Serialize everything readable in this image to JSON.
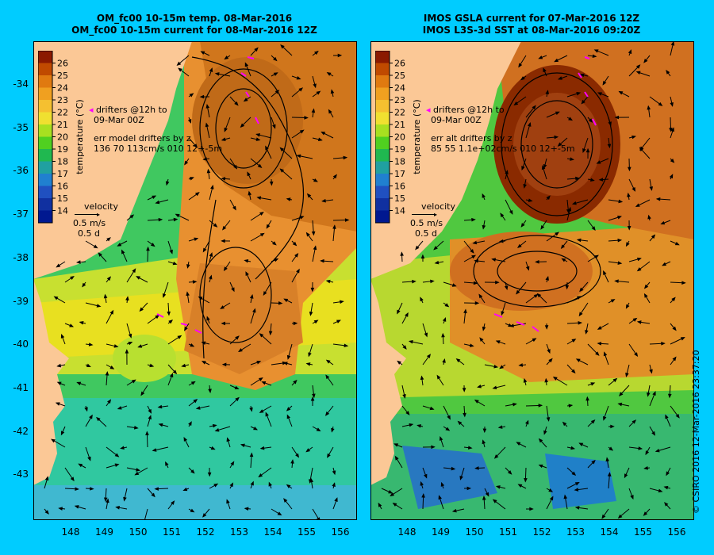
{
  "panels": [
    {
      "title_line1": "OM_fc00 10-15m temp. 08-Mar-2016",
      "title_line2": "OM_fc00 10-15m current for 08-Mar-2016 12Z",
      "drifters_line1": "drifters @12h to",
      "drifters_line2": "09-Mar 00Z",
      "err_line1": "err model drifters by z",
      "err_line2": "136 70 113cm/s 010 12+-5m"
    },
    {
      "title_line1": "IMOS GSLA current for 07-Mar-2016 12Z",
      "title_line2": "IMOS L3S-3d SST at 08-Mar-2016 09:20Z",
      "drifters_line1": "drifters @12h to",
      "drifters_line2": "09-Mar 00Z",
      "err_line1": "err alt drifters by z",
      "err_line2": "85 55 1.1e+02cm/s 010 12+-5m"
    }
  ],
  "colorbar": {
    "label": "temperature (°C)",
    "ticks": [
      "26",
      "25",
      "24",
      "23",
      "22",
      "21",
      "20",
      "19",
      "18",
      "17",
      "16",
      "15",
      "14"
    ],
    "colors": [
      "#8b1a00",
      "#c04a00",
      "#e07a10",
      "#f0a020",
      "#f5c030",
      "#f0e030",
      "#a8e020",
      "#50d020",
      "#20b850",
      "#20a0a0",
      "#2080d0",
      "#2050c0",
      "#1030a0",
      "#001890"
    ]
  },
  "velocity_legend": {
    "label": "velocity",
    "speed": "0.5 m/s",
    "duration": "0.5 d"
  },
  "y_axis_labels": [
    "-34",
    "-35",
    "-36",
    "-37",
    "-38",
    "-39",
    "-40",
    "-41",
    "-42",
    "-43"
  ],
  "x_axis_labels": [
    "148",
    "149",
    "150",
    "151",
    "152",
    "153",
    "154",
    "155",
    "156"
  ],
  "credit": "© CSIRO 2016  12-Mar-2016 23:37:20",
  "colors": {
    "background": "#00ccff",
    "land": "#fbc896",
    "drifter": "#ff00ff"
  }
}
